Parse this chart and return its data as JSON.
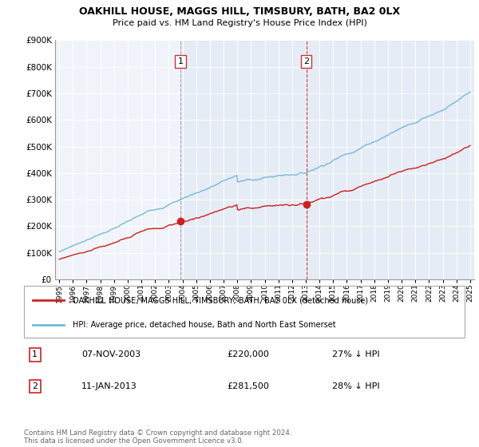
{
  "title": "OAKHILL HOUSE, MAGGS HILL, TIMSBURY, BATH, BA2 0LX",
  "subtitle": "Price paid vs. HM Land Registry's House Price Index (HPI)",
  "ylim": [
    0,
    900000
  ],
  "yticks": [
    0,
    100000,
    200000,
    300000,
    400000,
    500000,
    600000,
    700000,
    800000,
    900000
  ],
  "hpi_color": "#7ab8d9",
  "price_color": "#cc2222",
  "bg_color": "#f0f4fa",
  "sale1_date": "07-NOV-2003",
  "sale1_price": 220000,
  "sale1_pct": "27% ↓ HPI",
  "sale2_date": "11-JAN-2013",
  "sale2_price": 281500,
  "sale2_pct": "28% ↓ HPI",
  "legend_label1": "OAKHILL HOUSE, MAGGS HILL, TIMSBURY, BATH, BA2 0LX (detached house)",
  "legend_label2": "HPI: Average price, detached house, Bath and North East Somerset",
  "footer": "Contains HM Land Registry data © Crown copyright and database right 2024.\nThis data is licensed under the Open Government Licence v3.0.",
  "sale1_x": 2003.85,
  "sale2_x": 2013.04,
  "vline1_x": 2003.85,
  "vline2_x": 2013.04,
  "xmin": 1994.7,
  "xmax": 2025.3
}
